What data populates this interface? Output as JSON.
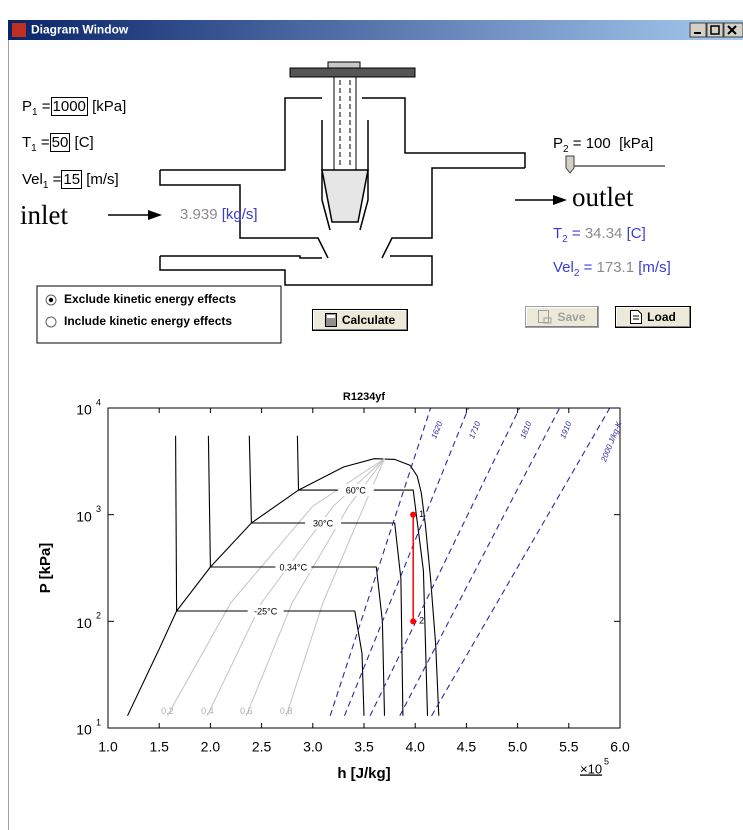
{
  "window": {
    "title": "Diagram Window"
  },
  "inputs": [
    {
      "name": "P",
      "sub": "1",
      "eq": "=",
      "value": "1000",
      "unit": "[kPa]"
    },
    {
      "name": "T",
      "sub": "1",
      "eq": "=",
      "value": "50",
      "unit": "[C]"
    },
    {
      "name": "Vel",
      "sub": "1",
      "eq": "=",
      "value": "15",
      "unit": "[m/s]"
    }
  ],
  "labels": {
    "inlet": "inlet",
    "outlet": "outlet"
  },
  "mass_flow": {
    "value": "3.939",
    "unit": "[kg/s]"
  },
  "outlet_pressure": {
    "name": "P",
    "sub": "2",
    "eq": "=",
    "value": "100",
    "unit": "[kPa]"
  },
  "results": [
    {
      "name": "T",
      "sub": "2",
      "eq": "=",
      "value": "34.34",
      "unit": "[C]"
    },
    {
      "name": "Vel",
      "sub": "2",
      "eq": "=",
      "value": "173.1",
      "unit": "[m/s]"
    }
  ],
  "options": [
    "Exclude kinetic energy effects",
    "Include kinetic energy effects"
  ],
  "selected_option": 0,
  "buttons": {
    "calculate": "Calculate",
    "save": "Save",
    "load": "Load"
  },
  "chart_data": {
    "type": "line",
    "title": "R1234yf",
    "xlabel": "h [J/kg]",
    "ylabel": "P [kPa]",
    "x_multiplier": {
      "base": "×10",
      "sup": "5"
    },
    "yscale": "log",
    "xlim": [
      1.0,
      6.0
    ],
    "ylim": [
      10,
      10000
    ],
    "xticks": [
      {
        "value": 1.0,
        "label": "1.0"
      },
      {
        "value": 1.5,
        "label": "1.5"
      },
      {
        "value": 2.0,
        "label": "2.0"
      },
      {
        "value": 2.5,
        "label": "2.5"
      },
      {
        "value": 3.0,
        "label": "3.0"
      },
      {
        "value": 3.5,
        "label": "3.5"
      },
      {
        "value": 4.0,
        "label": "4.0"
      },
      {
        "value": 4.5,
        "label": "4.5"
      },
      {
        "value": 5.0,
        "label": "5.0"
      },
      {
        "value": 5.5,
        "label": "5.5"
      },
      {
        "value": 6.0,
        "label": "6.0"
      }
    ],
    "yticks": [
      {
        "value": 10,
        "label": "10",
        "sup": "1"
      },
      {
        "value": 100,
        "label": "10",
        "sup": "2"
      },
      {
        "value": 1000,
        "label": "10",
        "sup": "3"
      },
      {
        "value": 10000,
        "label": "10",
        "sup": "4"
      }
    ],
    "series": [
      {
        "kind": "saturation",
        "color": "#000000",
        "x": [
          1.19,
          1.5,
          1.67,
          2.0,
          2.4,
          2.86,
          3.3,
          3.6,
          3.8,
          3.95,
          4.02,
          4.06,
          4.1,
          4.15,
          4.2,
          4.23
        ],
        "y": [
          13,
          55,
          125,
          323,
          836,
          1700,
          2800,
          3350,
          3300,
          2900,
          2300,
          1600,
          800,
          250,
          60,
          13
        ]
      },
      {
        "kind": "quality",
        "name": "0.2",
        "color": "#c8c8c8",
        "x": [
          1.58,
          2.2,
          3.0,
          3.7
        ],
        "y": [
          13,
          150,
          1200,
          3350
        ]
      },
      {
        "kind": "quality",
        "name": "0.4",
        "color": "#c8c8c8",
        "x": [
          1.97,
          2.5,
          3.2,
          3.7
        ],
        "y": [
          13,
          150,
          1200,
          3350
        ]
      },
      {
        "kind": "quality",
        "name": "0.6",
        "color": "#c8c8c8",
        "x": [
          2.35,
          2.8,
          3.35,
          3.7
        ],
        "y": [
          13,
          150,
          1200,
          3350
        ]
      },
      {
        "kind": "quality",
        "name": "0.8",
        "color": "#c8c8c8",
        "x": [
          2.74,
          3.1,
          3.5,
          3.7
        ],
        "y": [
          13,
          150,
          1200,
          3350
        ]
      },
      {
        "kind": "isotherm",
        "name": "-25°C",
        "color": "#000000",
        "x": [
          1.66,
          1.67,
          3.41,
          3.48,
          3.5
        ],
        "y": [
          5500,
          125,
          125,
          50,
          13
        ]
      },
      {
        "kind": "isotherm",
        "name": "0.34°C",
        "color": "#000000",
        "x": [
          1.98,
          2.0,
          3.62,
          3.68,
          3.7
        ],
        "y": [
          5500,
          323,
          323,
          100,
          13
        ]
      },
      {
        "kind": "isotherm",
        "name": "30°C",
        "color": "#000000",
        "x": [
          2.38,
          2.4,
          3.8,
          3.86,
          3.88
        ],
        "y": [
          5500,
          836,
          836,
          250,
          13
        ]
      },
      {
        "kind": "isotherm",
        "name": "60°C",
        "color": "#000000",
        "x": [
          2.85,
          2.86,
          3.98,
          4.08,
          4.12
        ],
        "y": [
          5500,
          1700,
          1700,
          300,
          13
        ]
      },
      {
        "kind": "entropy",
        "name": "1620",
        "color": "#2a2aa0",
        "dash": true,
        "x": [
          3.17,
          4.15
        ],
        "y": [
          13,
          10000
        ]
      },
      {
        "kind": "entropy",
        "name": "1710",
        "color": "#2a2aa0",
        "dash": true,
        "x": [
          3.31,
          4.52
        ],
        "y": [
          13,
          10000
        ]
      },
      {
        "kind": "entropy",
        "name": "1810",
        "color": "#2a2aa0",
        "dash": true,
        "x": [
          3.56,
          5.02
        ],
        "y": [
          13,
          10000
        ]
      },
      {
        "kind": "entropy",
        "name": "1910",
        "color": "#2a2aa0",
        "dash": true,
        "x": [
          3.85,
          5.41
        ],
        "y": [
          13,
          10000
        ]
      },
      {
        "kind": "entropy",
        "name": "2000 J/kg-K",
        "color": "#2a2aa0",
        "dash": true,
        "x": [
          4.16,
          5.9
        ],
        "y": [
          13,
          10000
        ]
      },
      {
        "kind": "process",
        "color": "#ff0000",
        "marker": "circle",
        "x": [
          3.98,
          3.98
        ],
        "y": [
          1000,
          100
        ],
        "point_labels": [
          "1",
          "2"
        ]
      }
    ]
  }
}
